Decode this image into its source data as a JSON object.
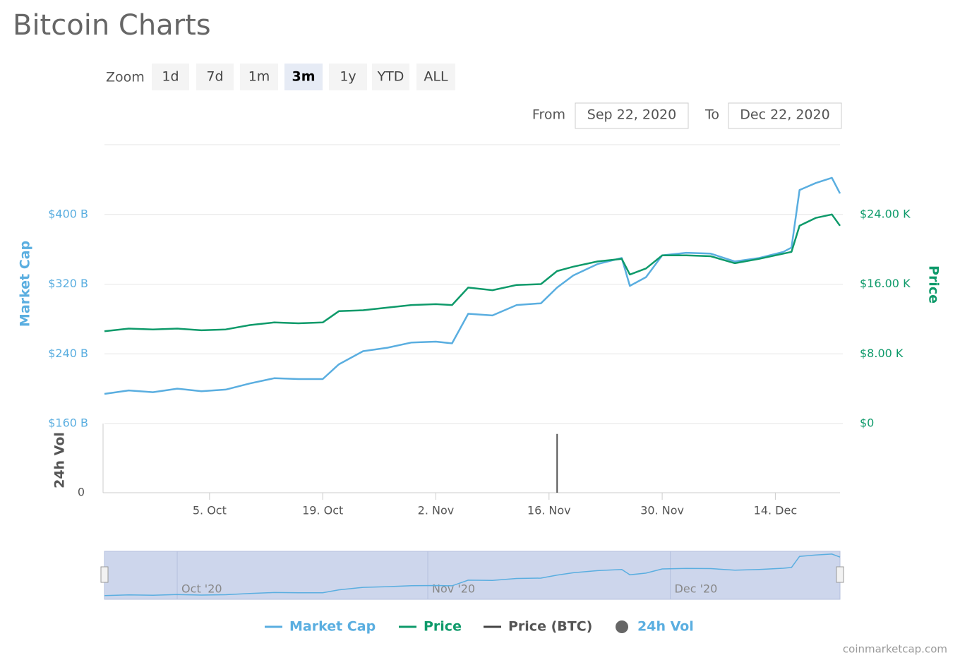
{
  "page": {
    "title": "Bitcoin Charts",
    "zoom_label": "Zoom",
    "zoom_buttons": [
      "1d",
      "7d",
      "1m",
      "3m",
      "1y",
      "YTD",
      "ALL"
    ],
    "selected_zoom": 3,
    "from_label": "From",
    "from_value": "Sep 22, 2020",
    "to_label": "To",
    "to_value": "Dec 22, 2020",
    "credit": "coinmarketcap.com"
  },
  "chart_data": {
    "type": "line",
    "x": [
      "2020-09-22",
      "2020-09-25",
      "2020-09-28",
      "2020-10-01",
      "2020-10-04",
      "2020-10-07",
      "2020-10-10",
      "2020-10-13",
      "2020-10-16",
      "2020-10-19",
      "2020-10-21",
      "2020-10-24",
      "2020-10-27",
      "2020-10-30",
      "2020-11-02",
      "2020-11-04",
      "2020-11-06",
      "2020-11-09",
      "2020-11-12",
      "2020-11-15",
      "2020-11-17",
      "2020-11-19",
      "2020-11-22",
      "2020-11-25",
      "2020-11-26",
      "2020-11-28",
      "2020-11-30",
      "2020-12-03",
      "2020-12-06",
      "2020-12-09",
      "2020-12-12",
      "2020-12-15",
      "2020-12-16",
      "2020-12-17",
      "2020-12-19",
      "2020-12-21",
      "2020-12-22"
    ],
    "xlim": [
      "2020-09-22",
      "2020-12-22"
    ],
    "xticks": [
      {
        "value": "2020-10-05",
        "label": "5. Oct"
      },
      {
        "value": "2020-10-19",
        "label": "19. Oct"
      },
      {
        "value": "2020-11-02",
        "label": "2. Nov"
      },
      {
        "value": "2020-11-16",
        "label": "16. Nov"
      },
      {
        "value": "2020-11-30",
        "label": "30. Nov"
      },
      {
        "value": "2020-12-14",
        "label": "14. Dec"
      }
    ],
    "ylabel": "Market Cap",
    "ylim": [
      160,
      480
    ],
    "yticks": [
      {
        "value": 160,
        "label": "$160 B"
      },
      {
        "value": 240,
        "label": "$240 B"
      },
      {
        "value": 320,
        "label": "$320 B"
      },
      {
        "value": 400,
        "label": "$400 B"
      }
    ],
    "y2label": "Price",
    "y2lim": [
      0,
      32
    ],
    "y2ticks": [
      {
        "value": 0,
        "label": "$0"
      },
      {
        "value": 8,
        "label": "$8.00 K"
      },
      {
        "value": 16,
        "label": "$16.00 K"
      },
      {
        "value": 24,
        "label": "$24.00 K"
      }
    ],
    "grid": true,
    "legend": "bottom",
    "series": [
      {
        "name": "Market Cap",
        "color": "#5aaee0",
        "values": [
          194,
          198,
          196,
          200,
          197,
          199,
          206,
          212,
          211,
          211,
          228,
          243,
          247,
          253,
          254,
          252,
          286,
          284,
          296,
          298,
          316,
          330,
          343,
          350,
          318,
          328,
          353,
          356,
          355,
          346,
          350,
          357,
          362,
          428,
          436,
          442,
          424
        ]
      },
      {
        "name": "Price",
        "color": "#0e9a6a",
        "axis": "y2",
        "values": [
          10.6,
          10.9,
          10.8,
          10.9,
          10.7,
          10.8,
          11.3,
          11.6,
          11.5,
          11.6,
          12.9,
          13.0,
          13.3,
          13.6,
          13.7,
          13.6,
          15.6,
          15.3,
          15.9,
          16.0,
          17.5,
          18.0,
          18.6,
          18.9,
          17.1,
          17.8,
          19.3,
          19.3,
          19.2,
          18.4,
          18.9,
          19.5,
          19.7,
          22.7,
          23.6,
          24.0,
          22.7
        ]
      },
      {
        "name": "Price (BTC)",
        "color": "#444444",
        "visible": false,
        "values": [
          null,
          null,
          null,
          null,
          null,
          null,
          null,
          null,
          null,
          null,
          null,
          null,
          null,
          null,
          null,
          null,
          null,
          null,
          null,
          null,
          null,
          null,
          null,
          null,
          null,
          null,
          null,
          null,
          null,
          null,
          null,
          null,
          null,
          null,
          null,
          null,
          null
        ]
      }
    ],
    "volume": {
      "name": "24h Vol",
      "ylabel": "24h Vol",
      "color": "#555555",
      "x": [
        "2020-11-17"
      ],
      "values": [
        85
      ],
      "ylim": [
        0,
        100
      ],
      "yticks": [
        0
      ]
    },
    "navigator": {
      "ylim": [
        180,
        450
      ],
      "xticks": [
        {
          "value": "2020-10-01",
          "label": "Oct '20"
        },
        {
          "value": "2020-11-01",
          "label": "Nov '20"
        },
        {
          "value": "2020-12-01",
          "label": "Dec '20"
        }
      ]
    }
  }
}
